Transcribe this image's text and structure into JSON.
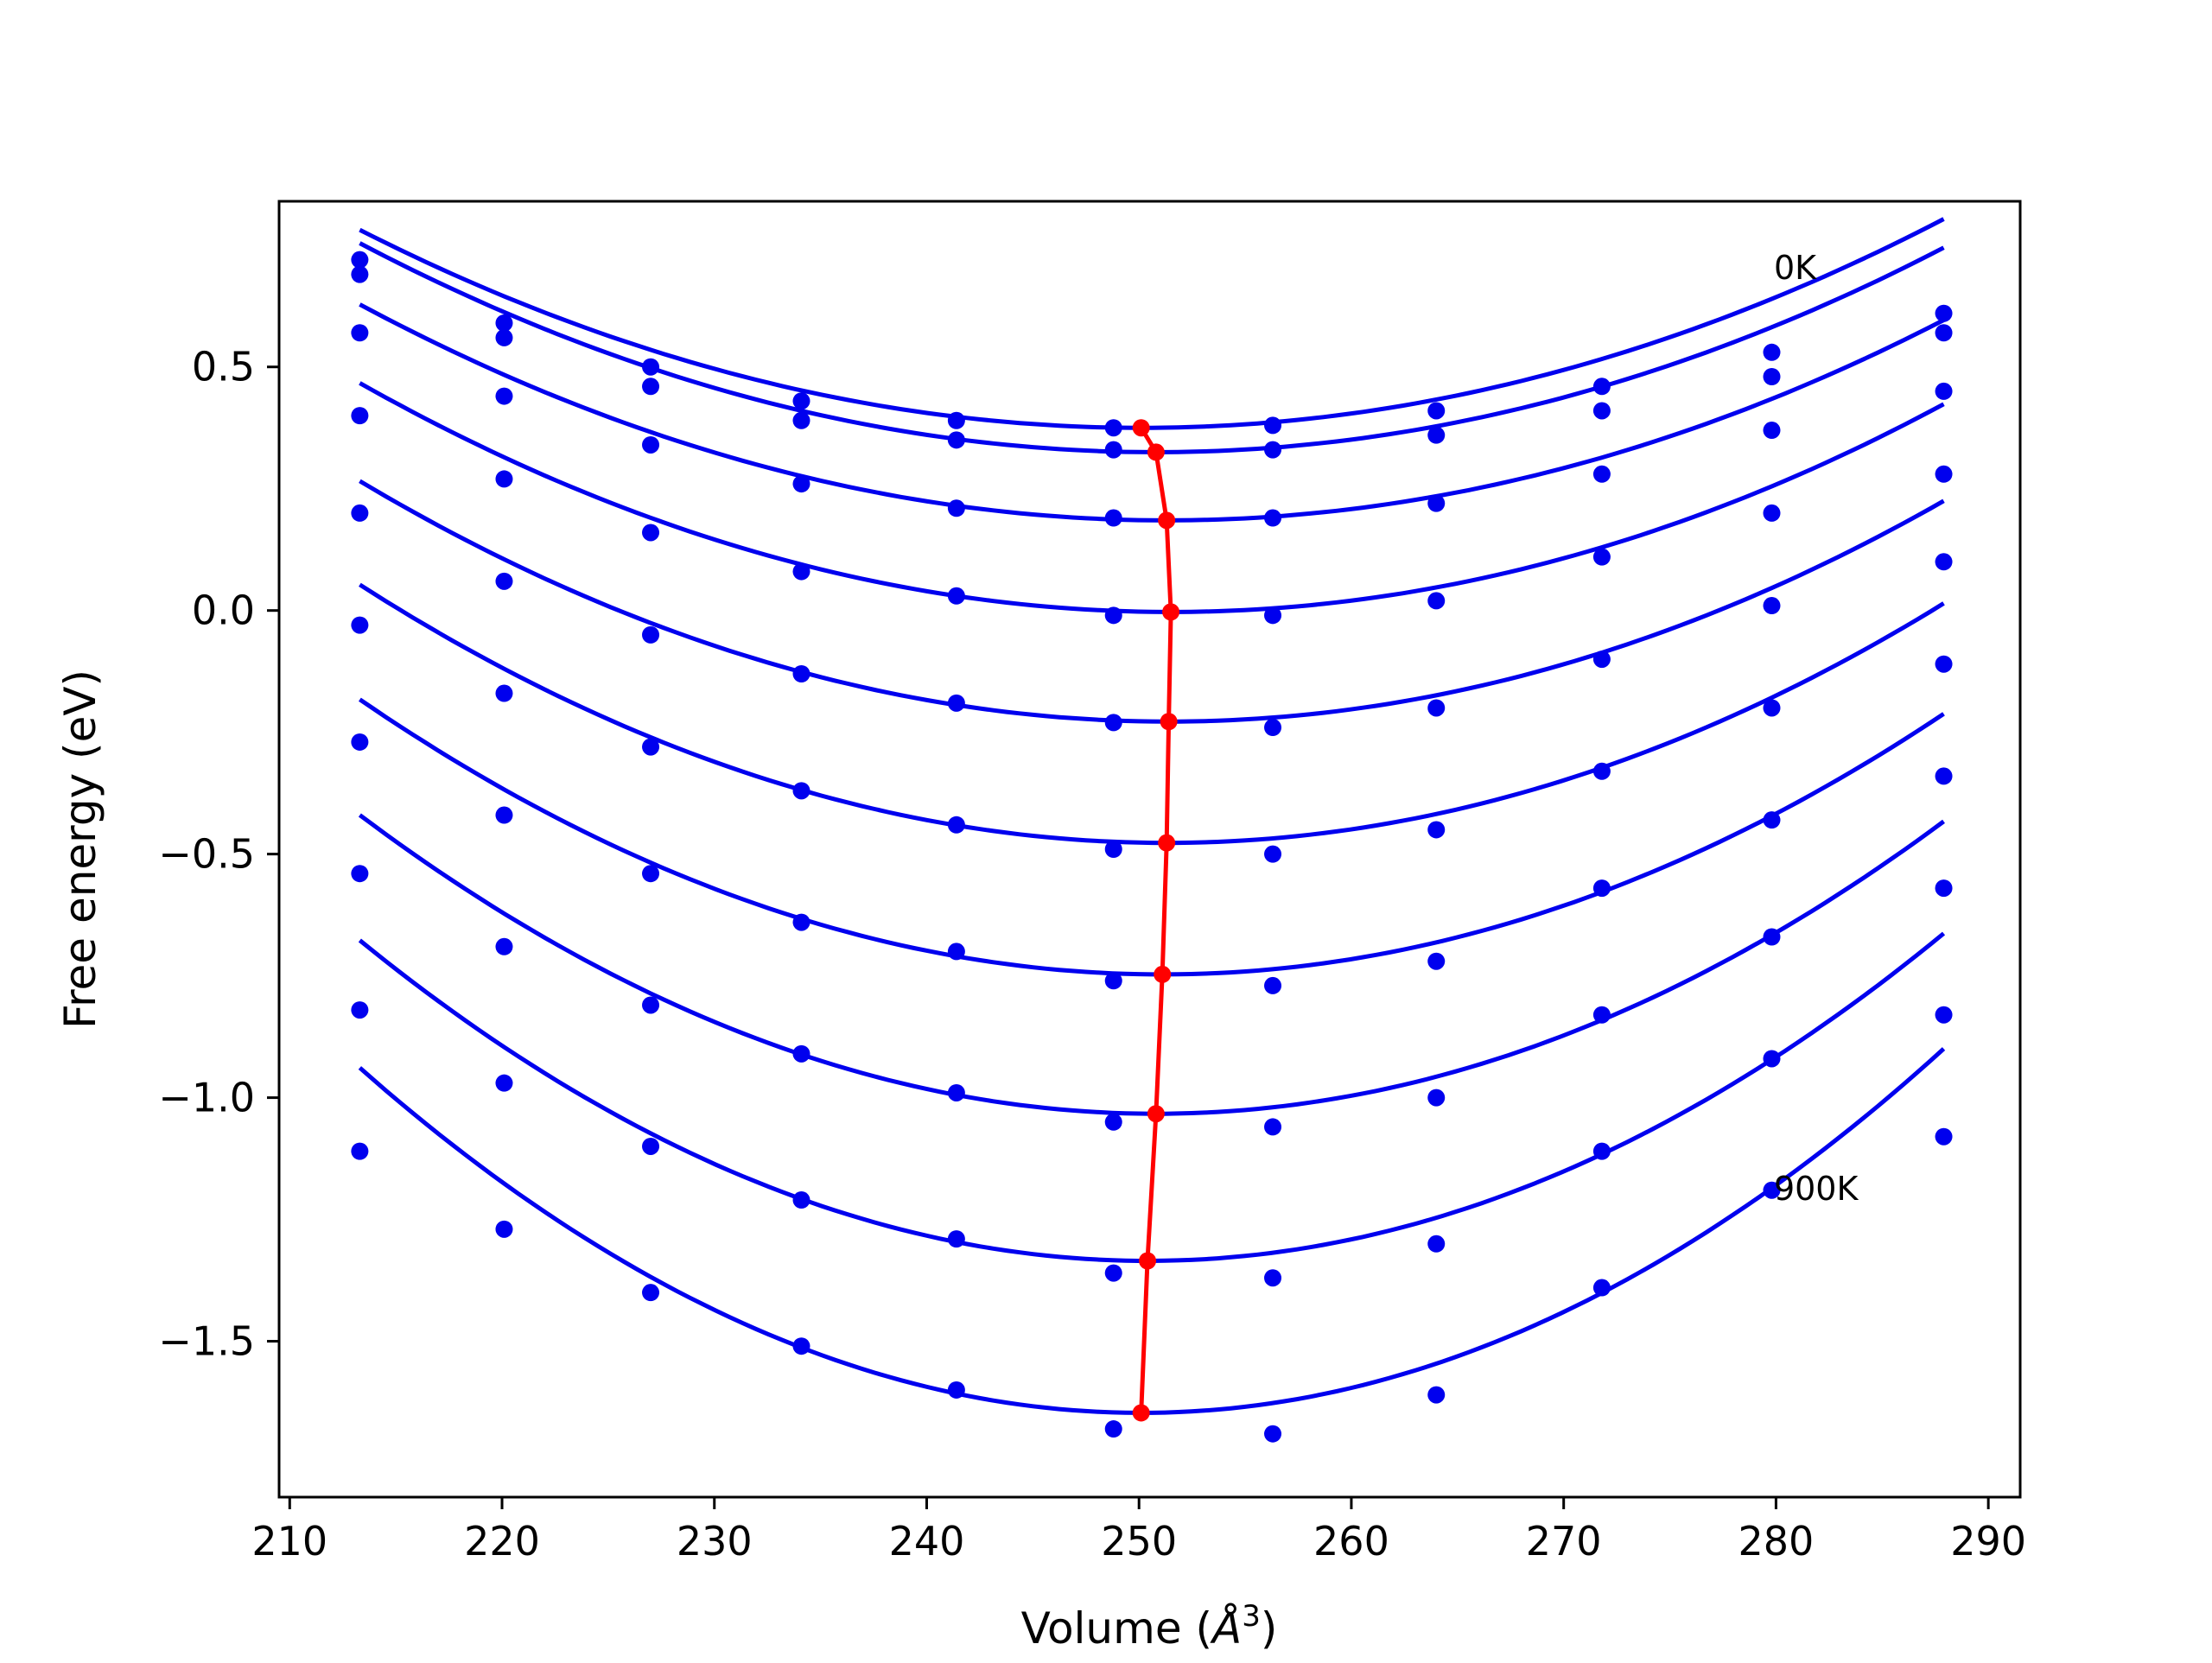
{
  "chart_data": {
    "type": "scatter",
    "xlabel_prefix": "Volume (",
    "xlabel_symbol": "Å",
    "xlabel_power": "3",
    "xlabel_suffix": ")",
    "ylabel": "Free energy (eV)",
    "xlim": [
      209.5,
      291.5
    ],
    "ylim": [
      -1.82,
      0.84
    ],
    "x_ticks": [
      210,
      220,
      230,
      240,
      250,
      260,
      270,
      280,
      290
    ],
    "x_tick_labels": [
      "210",
      "220",
      "230",
      "240",
      "250",
      "260",
      "270",
      "280",
      "290"
    ],
    "y_ticks": [
      0.5,
      0.0,
      -0.5,
      -1.0,
      -1.5
    ],
    "y_tick_labels": [
      "0.5",
      "0.0",
      "−0.5",
      "−1.0",
      "−1.5"
    ],
    "grid": false,
    "colors": {
      "points": "#0000ee",
      "fits": "#0000ee",
      "minimum": "#ff0000"
    },
    "annotations": [
      {
        "text": "0K",
        "x": 279.9,
        "y": 0.68
      },
      {
        "text": "900K",
        "x": 279.9,
        "y": -1.21
      }
    ],
    "volumes": [
      213.3,
      220.1,
      227.0,
      234.1,
      241.4,
      248.8,
      256.3,
      264.0,
      271.8,
      279.8,
      287.9
    ],
    "series": [
      {
        "points": [
          0.72,
          0.59,
          0.5,
          0.43,
          0.39,
          0.375,
          0.38,
          0.41,
          0.46,
          0.53,
          0.61
        ],
        "fit": {
          "a": 0.0003,
          "vmin": 250.1,
          "emin": 0.375
        }
      },
      {
        "points": [
          0.69,
          0.56,
          0.46,
          0.39,
          0.35,
          0.33,
          0.33,
          0.36,
          0.41,
          0.48,
          0.57
        ],
        "fit": {
          "a": 0.000305,
          "vmin": 250.8,
          "emin": 0.325
        }
      },
      {
        "points": [
          0.57,
          0.44,
          0.34,
          0.26,
          0.21,
          0.19,
          0.19,
          0.22,
          0.28,
          0.37,
          0.45
        ],
        "fit": {
          "a": 0.000307,
          "vmin": 251.3,
          "emin": 0.185
        }
      },
      {
        "points": [
          0.4,
          0.27,
          0.16,
          0.08,
          0.03,
          -0.01,
          -0.01,
          0.02,
          0.11,
          0.2,
          0.28
        ],
        "fit": {
          "a": 0.000322,
          "vmin": 251.5,
          "emin": -0.003
        }
      },
      {
        "points": [
          0.2,
          0.06,
          -0.05,
          -0.13,
          -0.19,
          -0.23,
          -0.24,
          -0.2,
          -0.1,
          0.01,
          0.1
        ],
        "fit": {
          "a": 0.00034,
          "vmin": 251.4,
          "emin": -0.228
        }
      },
      {
        "points": [
          -0.03,
          -0.17,
          -0.28,
          -0.37,
          -0.44,
          -0.49,
          -0.5,
          -0.45,
          -0.33,
          -0.2,
          -0.11
        ],
        "fit": {
          "a": 0.000367,
          "vmin": 251.3,
          "emin": -0.477
        }
      },
      {
        "points": [
          -0.27,
          -0.42,
          -0.54,
          -0.64,
          -0.7,
          -0.76,
          -0.77,
          -0.72,
          -0.57,
          -0.43,
          -0.34
        ],
        "fit": {
          "a": 0.000395,
          "vmin": 251.1,
          "emin": -0.747
        }
      },
      {
        "points": [
          -0.54,
          -0.69,
          -0.81,
          -0.91,
          -0.99,
          -1.05,
          -1.06,
          -1.0,
          -0.83,
          -0.67,
          -0.57
        ],
        "fit": {
          "a": 0.000436,
          "vmin": 250.8,
          "emin": -1.033
        }
      },
      {
        "points": [
          -0.82,
          -0.97,
          -1.1,
          -1.21,
          -1.29,
          -1.36,
          -1.37,
          -1.3,
          -1.11,
          -0.92,
          -0.83
        ],
        "fit": {
          "a": 0.000478,
          "vmin": 250.4,
          "emin": -1.335
        }
      },
      {
        "points": [
          -1.11,
          -1.27,
          -1.4,
          -1.51,
          -1.6,
          -1.68,
          -1.69,
          -1.61,
          -1.39,
          -1.19,
          -1.08
        ],
        "fit": {
          "a": 0.000523,
          "vmin": 250.1,
          "emin": -1.647
        }
      }
    ],
    "minimum_line": [
      [
        250.1,
        0.375
      ],
      [
        250.8,
        0.325
      ],
      [
        251.3,
        0.185
      ],
      [
        251.5,
        -0.003
      ],
      [
        251.4,
        -0.228
      ],
      [
        251.3,
        -0.477
      ],
      [
        251.1,
        -0.747
      ],
      [
        250.8,
        -1.033
      ],
      [
        250.4,
        -1.335
      ],
      [
        250.1,
        -1.647
      ]
    ]
  }
}
